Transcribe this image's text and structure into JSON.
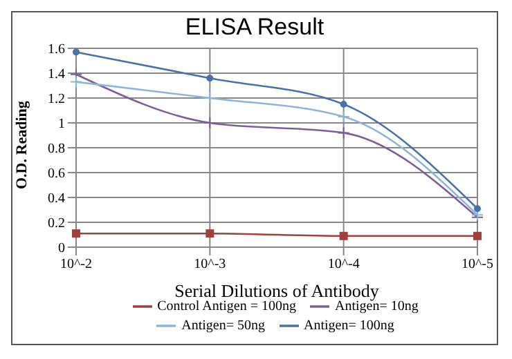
{
  "chart_data": {
    "type": "line",
    "title": "ELISA Result",
    "xlabel": "Serial Dilutions  of Antibody",
    "ylabel": "O.D. Reading",
    "categories": [
      "10^-2",
      "10^-3",
      "10^-4",
      "10^-5"
    ],
    "series": [
      {
        "name": "Control Antigen = 100ng",
        "color": "#a0403c",
        "marker": "square",
        "values": [
          0.11,
          0.11,
          0.09,
          0.09
        ]
      },
      {
        "name": "Antigen= 10ng",
        "color": "#7b5f95",
        "marker": "cross",
        "values": [
          1.39,
          1.0,
          0.92,
          0.24
        ]
      },
      {
        "name": "Antigen= 50ng",
        "color": "#8fb4d8",
        "marker": "cross",
        "values": [
          1.33,
          1.2,
          1.05,
          0.26
        ]
      },
      {
        "name": "Antigen= 100ng",
        "color": "#4a72a8",
        "marker": "circle",
        "values": [
          1.57,
          1.36,
          1.15,
          0.31
        ]
      }
    ],
    "ylim": [
      0,
      1.6
    ],
    "yticks": [
      0,
      0.2,
      0.4,
      0.6,
      0.8,
      1,
      1.2,
      1.4,
      1.6
    ],
    "grid": true,
    "legend": "bottom"
  }
}
